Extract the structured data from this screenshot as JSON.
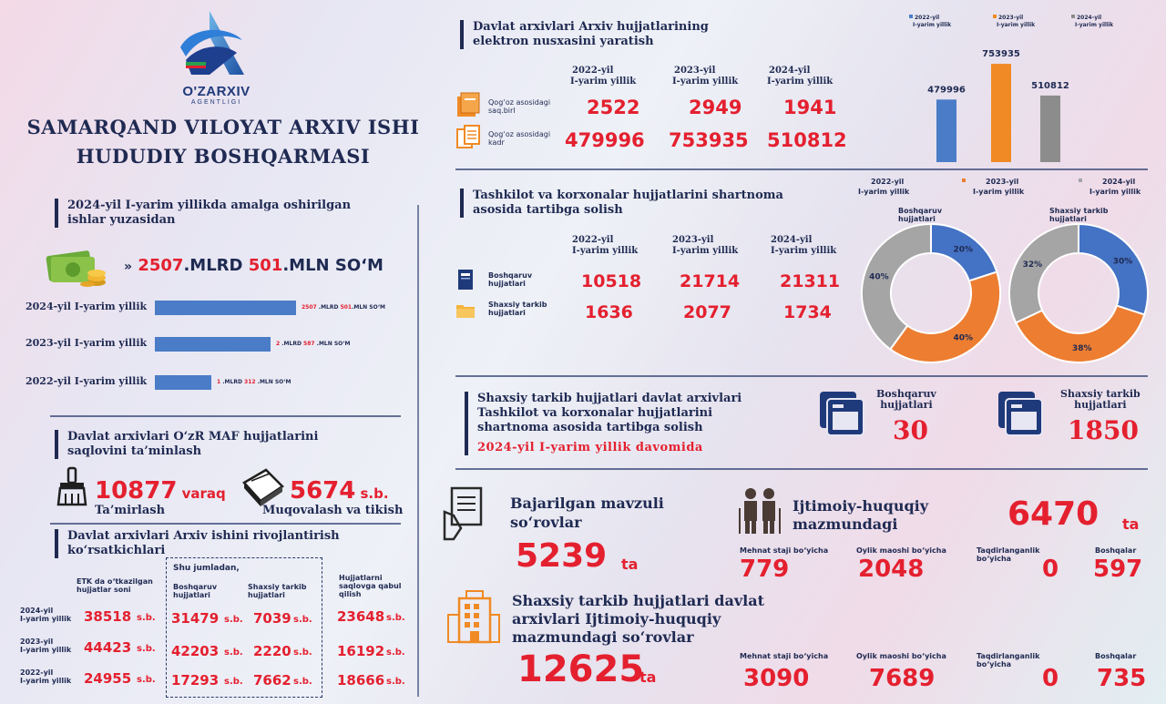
{
  "logo": {
    "name": "O'ZARXIV",
    "sub": "AGENTLIGI"
  },
  "title": {
    "line1": "SAMARQAND VILOYAT ARXIV ISHI",
    "line2": "HUDUDIY BOSHQARMASI"
  },
  "works": {
    "header": [
      "2024-yil I-yarim yillikda amalga oshirilgan",
      "ishlar yuzasidan"
    ],
    "total_a": "2507",
    "total_a_unit": ".MLRD",
    "total_b": "501",
    "total_b_unit": ".MLN SO‘M",
    "bars": [
      {
        "label": "2024-yil I-yarim yillik",
        "a": "2507",
        "a_unit": " .MLRD ",
        "b": "501",
        "b_unit": ".MLN SO‘M",
        "value": 2507.501
      },
      {
        "label": "2023-yil I-yarim yillik",
        "a": "2",
        "a_unit": " .MLRD ",
        "b": "587",
        "b_unit": " .MLN SO‘M",
        "value": 2.587
      },
      {
        "label": "2022-yil I-yarim yillik",
        "a": "1",
        "a_unit": " .MLRD ",
        "b": "312",
        "b_unit": " .MLN SO‘M",
        "value": 1.312
      }
    ]
  },
  "maf": {
    "header": [
      "Davlat arxivlari  O‘zR MAF hujjatlarini",
      "saqlovini ta’minlash"
    ],
    "repair_value": "10877",
    "repair_unit": "varaq",
    "repair_label": "Ta’mirlash",
    "bind_value": "5674",
    "bind_unit": "s.b.",
    "bind_label": "Muqovalash va tikish"
  },
  "dev": {
    "header": [
      "Davlat arxivlari Arxiv ishini rivojlantirish",
      "ko‘rsatkichlari"
    ],
    "col_etk": [
      "ETK da o‘tkazilgan",
      "hujjatlar soni"
    ],
    "col_group": "Shu jumladan,",
    "col_bosh": [
      "Boshqaruv",
      "hujjatlari"
    ],
    "col_shax": [
      "Shaxsiy tarkib",
      "hujjatlari"
    ],
    "col_saq": [
      "Hujjatlarni",
      "saqlovga qabul",
      "qilish"
    ],
    "unit": "s.b.",
    "rows": [
      {
        "year": [
          "2024-yil",
          "I-yarim yillik"
        ],
        "etk": "38518",
        "bosh": "31479",
        "shax": "7039",
        "saq": "23648"
      },
      {
        "year": [
          "2023-yil",
          "I-yarim yillik"
        ],
        "etk": "44423",
        "bosh": "42203",
        "shax": "2220",
        "saq": "16192"
      },
      {
        "year": [
          "2022-yil",
          "I-yarim yillik"
        ],
        "etk": "24955",
        "bosh": "17293",
        "shax": "7662",
        "saq": "18666"
      }
    ]
  },
  "digital": {
    "header": [
      "Davlat arxivlari Arxiv hujjatlarining",
      "elektron nusxasini yaratish"
    ],
    "years": [
      [
        "2022-yil",
        "I-yarim yillik"
      ],
      [
        "2023-yil",
        "I-yarim yillik"
      ],
      [
        "2024-yil",
        "I-yarim yillik"
      ]
    ],
    "row1_label": [
      "Qog‘oz asosidagi",
      "saq.birl"
    ],
    "row1": [
      "2522",
      "2949",
      "1941"
    ],
    "row2_label": [
      "Qog‘oz asosidagi",
      "kadr"
    ],
    "row2": [
      "479996",
      "753935",
      "510812"
    ]
  },
  "contract": {
    "header": [
      "Tashkilot va korxonalar hujjatlarini shartnoma",
      "asosida tartibga solish"
    ],
    "years": [
      [
        "2022-yil",
        "I-yarim yillik"
      ],
      [
        "2023-yil",
        "I-yarim yillik"
      ],
      [
        "2024-yil",
        "I-yarim yillik"
      ]
    ],
    "row1_label": [
      "Boshqaruv",
      "hujjatlari"
    ],
    "row1": [
      "10518",
      "21714",
      "21311"
    ],
    "row2_label": [
      "Shaxsiy tarkib",
      "hujjatlari"
    ],
    "row2": [
      "1636",
      "2077",
      "1734"
    ]
  },
  "personnel": {
    "header": [
      "Shaxsiy tarkib hujjatlari davlat arxivlari",
      "Tashkilot va korxonalar hujjatlarini",
      "shartnoma asosida tartibga solish"
    ],
    "period": "2024-yil I-yarim yillik davomida",
    "bosh_label": [
      "Boshqaruv",
      "hujjatlari"
    ],
    "bosh_value": "30",
    "shax_label": [
      "Shaxsiy tarkib",
      "hujjatlari"
    ],
    "shax_value": "1850"
  },
  "queries": {
    "thematic_title": [
      "Bajarilgan mavzuli",
      "so‘rovlar"
    ],
    "thematic_value": "5239",
    "thematic_unit": "ta",
    "social_title": [
      "Ijtimoiy-huquqiy",
      "mazmundagi"
    ],
    "social_value": "6470",
    "social_unit": "ta",
    "social_items": [
      {
        "label": [
          "Mehnat staji bo‘yicha"
        ],
        "value": "779"
      },
      {
        "label": [
          "Oylik maoshi bo‘yicha"
        ],
        "value": "2048"
      },
      {
        "label": [
          "Taqdirlanganlik",
          "bo‘yicha"
        ],
        "value": "0"
      },
      {
        "label": [
          "Boshqalar"
        ],
        "value": "597"
      }
    ],
    "personnel_title": [
      "Shaxsiy tarkib hujjatlari davlat",
      "arxivlari Ijtimoiy-huquqiy",
      "mazmundagi so‘rovlar"
    ],
    "personnel_value": "12625",
    "personnel_unit": "ta",
    "personnel_items": [
      {
        "label": [
          "Mehnat staji bo‘yicha"
        ],
        "value": "3090"
      },
      {
        "label": [
          "Oylik maoshi bo‘yicha"
        ],
        "value": "7689"
      },
      {
        "label": [
          "Taqdirlanganlik",
          "bo‘yicha"
        ],
        "value": "0"
      },
      {
        "label": [
          "Boshqalar"
        ],
        "value": "735"
      }
    ]
  },
  "colors": {
    "blue": "#4a7cc7",
    "orange": "#f08a24",
    "gray": "#8c8c8c",
    "navy": "#1f2a52",
    "red": "#e4202f"
  },
  "chart_data": [
    {
      "type": "bar",
      "categories": [
        "2022-yil I-yarim yillik",
        "2023-yil I-yarim yillik",
        "2024-yil I-yarim yillik"
      ],
      "legend": [
        [
          "2022-yil",
          "I-yarim yillik"
        ],
        [
          "2023-yil",
          "I-yarim yillik"
        ],
        [
          "2024-yil",
          "I-yarim yillik"
        ]
      ],
      "values": [
        479996,
        753935,
        510812
      ],
      "labels": [
        "479996",
        "753935",
        "510812"
      ],
      "colors": [
        "#4a7cc7",
        "#f08a24",
        "#8c8c8c"
      ],
      "legend_position": "top",
      "ylim": [
        0,
        800000
      ],
      "grid": false
    },
    {
      "type": "pie",
      "legend": [
        [
          "2022-yil",
          "I-yarim yillik"
        ],
        [
          "2023-yil",
          "I-yarim yillik"
        ],
        [
          "2024-yil",
          "I-yarim yillik"
        ]
      ],
      "legend_position": "top",
      "donuts": [
        {
          "title": [
            "Boshqaruv",
            "hujjatlari"
          ],
          "values": [
            20,
            40,
            40
          ],
          "labels": [
            "20%",
            "40%",
            "40%"
          ]
        },
        {
          "title": [
            "Shaxsiy tarkib",
            "hujjatlari"
          ],
          "values": [
            30,
            38,
            32
          ],
          "labels": [
            "30%",
            "38%",
            "32%"
          ]
        }
      ],
      "colors": [
        "#4472c4",
        "#ed7d31",
        "#a5a5a5"
      ]
    }
  ]
}
